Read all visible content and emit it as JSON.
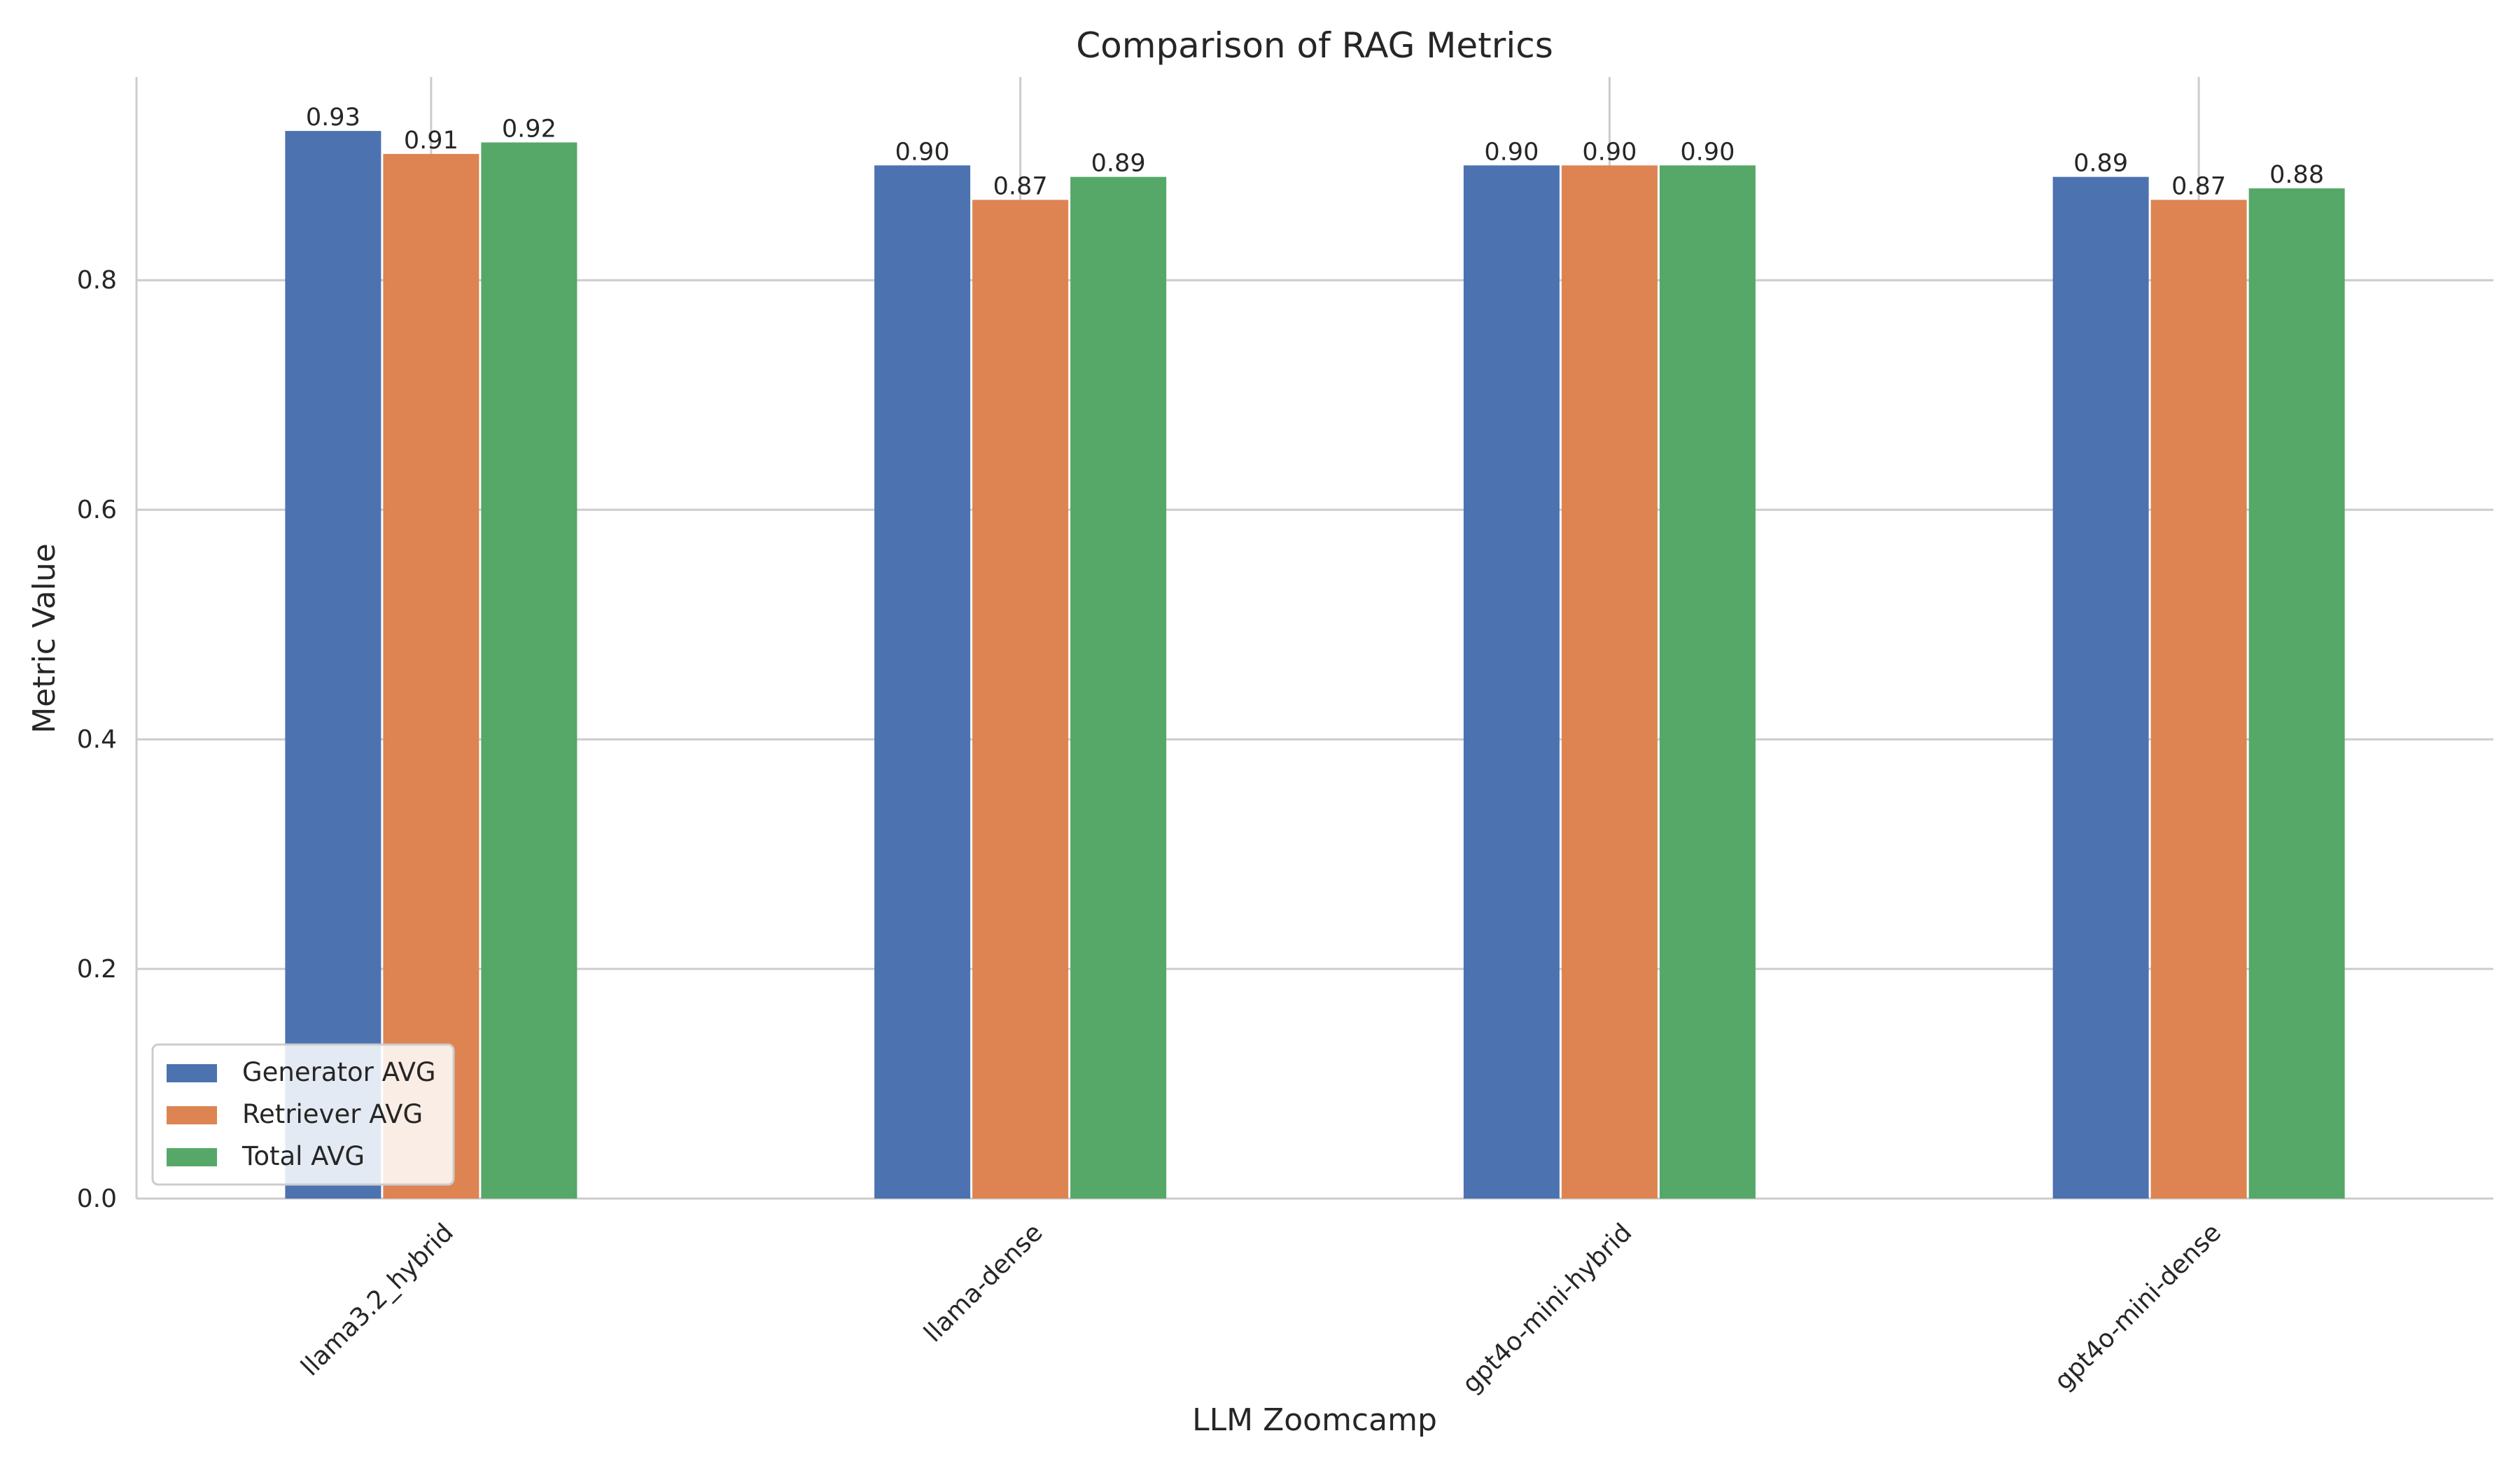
{
  "chart_data": {
    "type": "bar",
    "title": "Comparison of RAG Metrics",
    "xlabel": "LLM Zoomcamp",
    "ylabel": "Metric Value",
    "categories": [
      "llama3.2_hybrid",
      "llama-dense",
      "gpt4o-mini-hybrid",
      "gpt4o-mini-dense"
    ],
    "series": [
      {
        "name": "Generator AVG",
        "color": "#4c72b0",
        "values": [
          0.93,
          0.9,
          0.9,
          0.89
        ],
        "labels": [
          "0.93",
          "0.90",
          "0.90",
          "0.89"
        ]
      },
      {
        "name": "Retriever AVG",
        "color": "#dd8452",
        "values": [
          0.91,
          0.87,
          0.9,
          0.87
        ],
        "labels": [
          "0.91",
          "0.87",
          "0.90",
          "0.87"
        ]
      },
      {
        "name": "Total AVG",
        "color": "#55a868",
        "values": [
          0.92,
          0.89,
          0.9,
          0.88
        ],
        "labels": [
          "0.92",
          "0.89",
          "0.90",
          "0.88"
        ]
      }
    ],
    "ylim": [
      0,
      0.977
    ],
    "yticks": [
      0.0,
      0.2,
      0.4,
      0.6,
      0.8
    ],
    "ytick_labels": [
      "0.0",
      "0.2",
      "0.4",
      "0.6",
      "0.8"
    ],
    "grid": true,
    "legend_position": "lower-left",
    "xtick_rotation_deg": 45
  }
}
